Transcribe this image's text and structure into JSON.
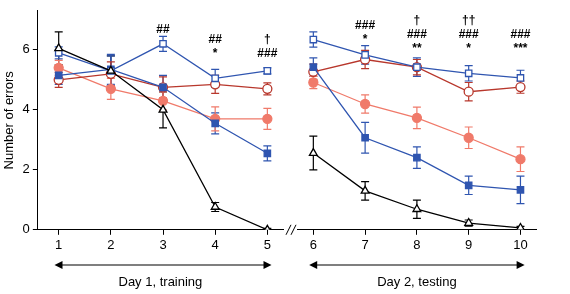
{
  "chart_data": [
    {
      "type": "line",
      "y_label": "Number of errors",
      "x_label": "Day 1, training",
      "x": [
        1,
        2,
        3,
        4,
        5
      ],
      "xlim": [
        0.6,
        5.3
      ],
      "xticks": [
        1,
        2,
        3,
        4,
        5
      ],
      "ylim": [
        0,
        7.3
      ],
      "yticks": [
        0,
        2,
        4,
        6
      ],
      "grid": false,
      "series": [
        {
          "color": "#000000",
          "marker": "triangle-open",
          "values": [
            6.05,
            5.3,
            4.0,
            0.76,
            0.0
          ],
          "errors": [
            0.55,
            0.5,
            0.6,
            0.15,
            0.05
          ]
        },
        {
          "color": "#2f55b0",
          "marker": "square-open",
          "values": [
            5.9,
            5.3,
            6.2,
            5.05,
            5.3
          ],
          "errors": [
            0.2,
            0.5,
            0.25,
            0.3,
            0.1
          ]
        },
        {
          "color": "#2f55b0",
          "marker": "square",
          "values": [
            5.15,
            5.35,
            4.75,
            3.55,
            2.55
          ],
          "errors": [
            0.3,
            0.5,
            0.4,
            0.35,
            0.25
          ]
        },
        {
          "color": "#b8372c",
          "marker": "circle-open",
          "values": [
            5.0,
            5.2,
            4.75,
            4.85,
            4.7
          ],
          "errors": [
            0.25,
            0.4,
            0.35,
            0.3,
            0.2
          ]
        },
        {
          "color": "#f07a6a",
          "marker": "circle",
          "values": [
            5.4,
            4.7,
            4.3,
            3.7,
            3.7
          ],
          "errors": [
            0.25,
            0.35,
            0.3,
            0.4,
            0.35
          ]
        }
      ],
      "annotations": [
        {
          "x": 3,
          "text": [
            "##"
          ]
        },
        {
          "x": 4,
          "text": [
            "##",
            "*"
          ]
        },
        {
          "x": 5,
          "text": [
            "†",
            "###"
          ]
        }
      ]
    },
    {
      "type": "line",
      "x_label": "Day 2, testing",
      "x": [
        6,
        7,
        8,
        9,
        10
      ],
      "xlim": [
        5.7,
        10.3
      ],
      "xticks": [
        6,
        7,
        8,
        9,
        10
      ],
      "ylim": [
        0,
        7.3
      ],
      "grid": false,
      "tick_labels": "x",
      "series": [
        {
          "color": "#000000",
          "marker": "triangle-open",
          "values": [
            2.5,
            1.27,
            0.67,
            0.22,
            0.06
          ],
          "errors": [
            0.55,
            0.3,
            0.3,
            0.1,
            0.05
          ]
        },
        {
          "color": "#2f55b0",
          "marker": "square-open",
          "values": [
            6.2,
            5.7,
            5.3,
            5.1,
            4.95
          ],
          "errors": [
            0.25,
            0.3,
            0.3,
            0.25,
            0.25
          ]
        },
        {
          "color": "#2f55b0",
          "marker": "square",
          "values": [
            5.3,
            3.0,
            2.35,
            1.45,
            1.3
          ],
          "errors": [
            0.3,
            0.5,
            0.35,
            0.3,
            0.45
          ]
        },
        {
          "color": "#b8372c",
          "marker": "circle-open",
          "values": [
            5.15,
            5.55,
            5.3,
            4.5,
            4.65
          ],
          "errors": [
            0.25,
            0.3,
            0.25,
            0.3,
            0.2
          ]
        },
        {
          "color": "#f07a6a",
          "marker": "circle",
          "values": [
            4.8,
            4.1,
            3.65,
            3.0,
            2.3
          ],
          "errors": [
            0.2,
            0.3,
            0.35,
            0.35,
            0.4
          ]
        }
      ],
      "annotations": [
        {
          "x": 7,
          "text": [
            "###",
            "*"
          ]
        },
        {
          "x": 8,
          "text": [
            "†",
            "###",
            "**"
          ]
        },
        {
          "x": 9,
          "text": [
            "††",
            "###",
            "*"
          ]
        },
        {
          "x": 10,
          "text": [
            "###",
            "***"
          ]
        }
      ]
    }
  ]
}
